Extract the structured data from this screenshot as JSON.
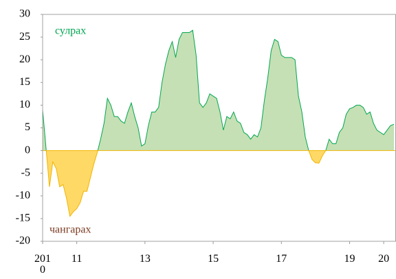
{
  "chart_data": {
    "type": "area",
    "x": [
      2010.0,
      2010.1,
      2010.2,
      2010.3,
      2010.4,
      2010.5,
      2010.6,
      2010.7,
      2010.8,
      2010.9,
      2011.0,
      2011.1,
      2011.2,
      2011.3,
      2011.4,
      2011.5,
      2011.6,
      2011.7,
      2011.8,
      2011.9,
      2012.0,
      2012.1,
      2012.2,
      2012.3,
      2012.4,
      2012.5,
      2012.6,
      2012.7,
      2012.8,
      2012.9,
      2013.0,
      2013.1,
      2013.2,
      2013.3,
      2013.4,
      2013.5,
      2013.6,
      2013.7,
      2013.8,
      2013.9,
      2014.0,
      2014.1,
      2014.2,
      2014.3,
      2014.4,
      2014.5,
      2014.6,
      2014.7,
      2014.8,
      2014.9,
      2015.0,
      2015.1,
      2015.2,
      2015.3,
      2015.4,
      2015.5,
      2015.6,
      2015.7,
      2015.8,
      2015.9,
      2016.0,
      2016.1,
      2016.2,
      2016.3,
      2016.4,
      2016.5,
      2016.6,
      2016.7,
      2016.8,
      2016.9,
      2017.0,
      2017.1,
      2017.2,
      2017.3,
      2017.4,
      2017.5,
      2017.6,
      2017.7,
      2017.8,
      2017.9,
      2018.0,
      2018.1,
      2018.2,
      2018.3,
      2018.4,
      2018.5,
      2018.6,
      2018.7,
      2018.8,
      2018.9,
      2019.0,
      2019.1,
      2019.2,
      2019.3,
      2019.4,
      2019.5,
      2019.6,
      2019.7,
      2019.8,
      2019.9,
      2020.0,
      2020.1,
      2020.2,
      2020.3
    ],
    "values": [
      9,
      0.5,
      -8,
      -2.5,
      -4,
      -8,
      -7.5,
      -10.5,
      -14.5,
      -13.5,
      -12.8,
      -11.5,
      -9,
      -9,
      -6,
      -3,
      -0.5,
      2.5,
      6,
      11.5,
      10,
      7.5,
      7.5,
      6.5,
      6,
      8.5,
      10.5,
      7.5,
      5,
      1,
      1.5,
      5.5,
      8.5,
      8.5,
      9.5,
      15,
      19,
      22,
      24,
      20.5,
      24.5,
      26,
      26,
      26,
      26.5,
      21,
      10.5,
      9.5,
      10.5,
      12.5,
      12,
      11.5,
      8.5,
      4.5,
      7.5,
      7,
      8.5,
      6.5,
      6,
      4,
      3.5,
      2.5,
      3.5,
      3,
      5,
      11,
      16,
      22,
      24.5,
      24,
      21,
      20.5,
      20.5,
      20.5,
      20,
      12,
      8.5,
      3,
      0,
      -2,
      -2.7,
      -2.8,
      -1.2,
      0,
      2.5,
      1.5,
      1.5,
      4,
      5,
      8,
      9.2,
      9.5,
      10,
      10,
      9.5,
      8,
      8.5,
      6,
      4.5,
      4,
      3.5,
      4.5,
      5.5,
      5.8
    ],
    "positive_color": "#c5e0b4",
    "positive_line_color": "#00a650",
    "negative_color": "#ffd966",
    "negative_line_color": "#f0b400",
    "annotations": [
      {
        "text": "сулрах",
        "color": "#00a650"
      },
      {
        "text": "чангарах",
        "color": "#7b3b22"
      }
    ],
    "xlim": [
      2010,
      2020.36
    ],
    "xticks": [
      {
        "value": 2010,
        "label": "2010"
      },
      {
        "value": 2011,
        "label": "11"
      },
      {
        "value": 2013,
        "label": "13"
      },
      {
        "value": 2015,
        "label": "15"
      },
      {
        "value": 2017,
        "label": "17"
      },
      {
        "value": 2019,
        "label": "19"
      },
      {
        "value": 2020,
        "label": "20"
      }
    ],
    "ylim": [
      -20,
      30
    ],
    "yticks": [
      -20,
      -15,
      -10,
      -5,
      0,
      5,
      10,
      15,
      20,
      25,
      30
    ]
  }
}
